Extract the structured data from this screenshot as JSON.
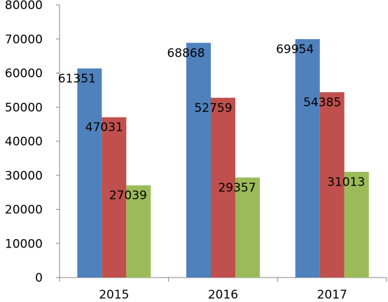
{
  "chart_data": {
    "type": "bar",
    "title": "",
    "xlabel": "",
    "ylabel": "",
    "categories": [
      "2015",
      "2016",
      "2017"
    ],
    "ylim": [
      0,
      80000
    ],
    "yticks": [
      0,
      10000,
      20000,
      30000,
      40000,
      50000,
      60000,
      70000,
      80000
    ],
    "grid": false,
    "legend": "none",
    "series": [
      {
        "values": [
          61351,
          68868,
          69954
        ],
        "color": "#4F81BD"
      },
      {
        "values": [
          47031,
          52759,
          54385
        ],
        "color": "#C0504D"
      },
      {
        "values": [
          27039,
          29357,
          31013
        ],
        "color": "#9BBB59"
      }
    ],
    "data_labels": [
      [
        "61351",
        "68868",
        "69954"
      ],
      [
        "47031",
        "52759",
        "54385"
      ],
      [
        "27039",
        "29357",
        "31013"
      ]
    ]
  }
}
